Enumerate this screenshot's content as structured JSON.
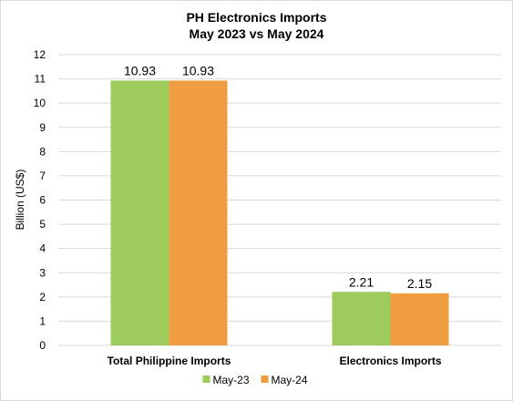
{
  "chart_data": {
    "type": "bar",
    "title": "PH Electronics Imports",
    "subtitle": "May 2023 vs May 2024",
    "ylabel": "Billion (US$)",
    "xlabel": "",
    "categories": [
      "Total Philippine Imports",
      "Electronics Imports"
    ],
    "series": [
      {
        "name": "May-23",
        "values": [
          10.93,
          2.21
        ],
        "labels": [
          "10.93",
          "2.21"
        ],
        "color": "#9dcb5c"
      },
      {
        "name": "May-24",
        "values": [
          10.93,
          2.15
        ],
        "labels": [
          "10.93",
          "2.15"
        ],
        "color": "#f09c41"
      }
    ],
    "ylim": [
      0,
      12
    ],
    "yticks": [
      "0",
      "1",
      "2",
      "3",
      "4",
      "5",
      "6",
      "7",
      "8",
      "9",
      "10",
      "11",
      "12"
    ],
    "grid": true,
    "legend": "bottom"
  }
}
